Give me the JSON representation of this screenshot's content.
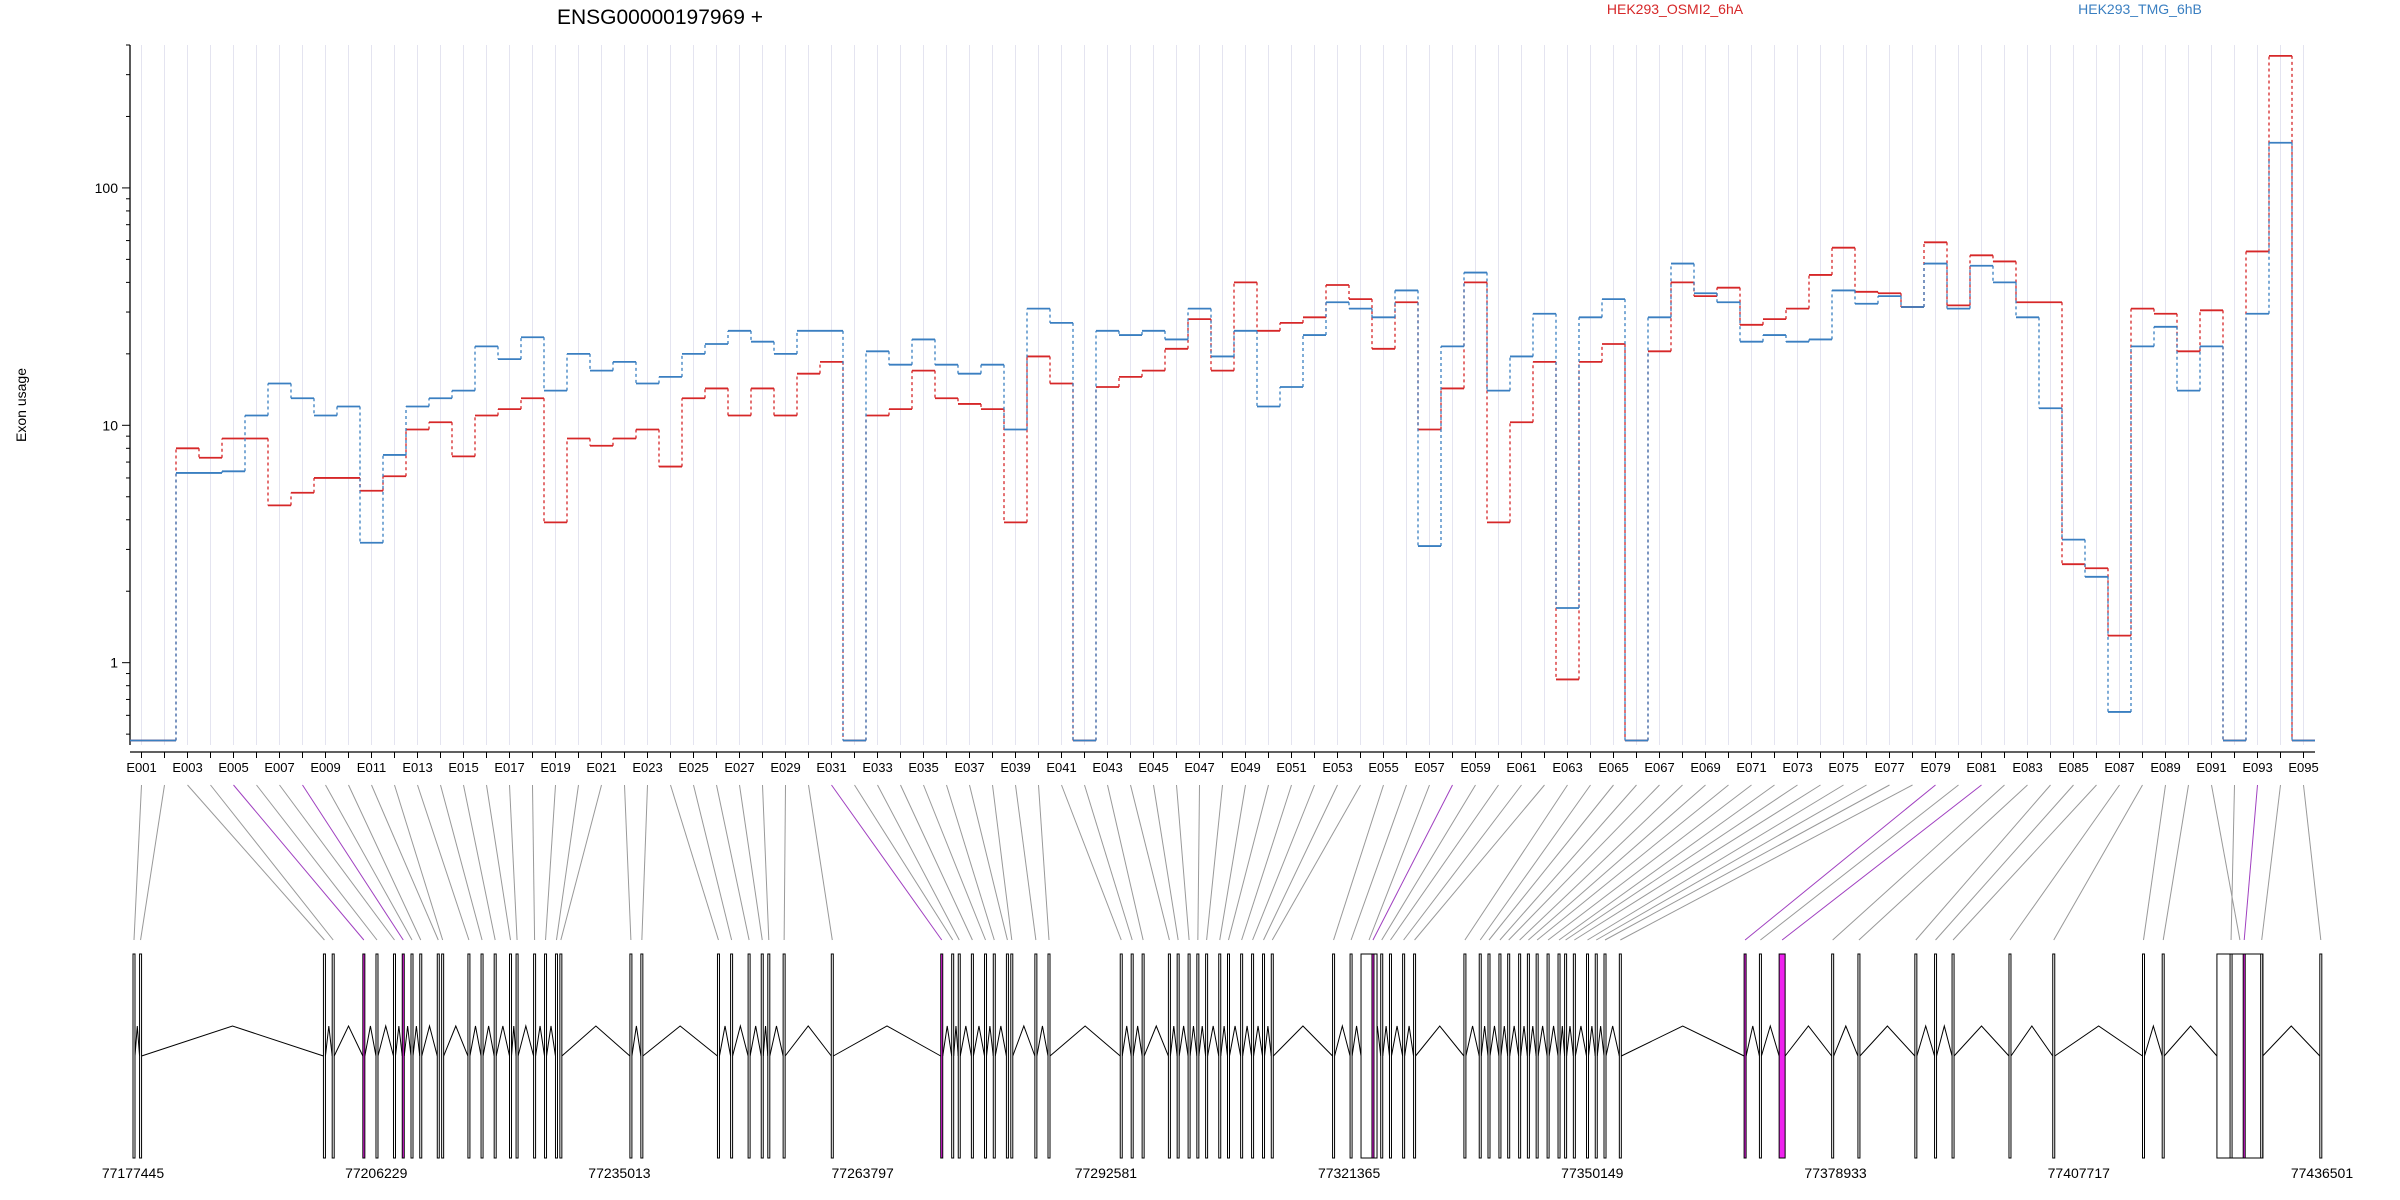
{
  "chart_data": {
    "type": "line",
    "title": "ENSG00000197969 +",
    "ylabel": "Exon usage",
    "yscale": "log",
    "ylim": [
      0.45,
      400
    ],
    "yticks": [
      "1",
      "10",
      "100"
    ],
    "grid": "vertical",
    "legend_position": "top",
    "categories": [
      "E001",
      "E002",
      "E003",
      "E004",
      "E005",
      "E006",
      "E007",
      "E008",
      "E009",
      "E010",
      "E011",
      "E012",
      "E013",
      "E014",
      "E015",
      "E016",
      "E017",
      "E018",
      "E019",
      "E020",
      "E021",
      "E022",
      "E023",
      "E024",
      "E025",
      "E026",
      "E027",
      "E028",
      "E029",
      "E030",
      "E031",
      "E032",
      "E033",
      "E034",
      "E035",
      "E036",
      "E037",
      "E038",
      "E039",
      "E040",
      "E041",
      "E042",
      "E043",
      "E044",
      "E045",
      "E046",
      "E047",
      "E048",
      "E049",
      "E050",
      "E051",
      "E052",
      "E053",
      "E054",
      "E055",
      "E056",
      "E057",
      "E058",
      "E059",
      "E060",
      "E061",
      "E062",
      "E063",
      "E064",
      "E065",
      "E066",
      "E067",
      "E068",
      "E069",
      "E070",
      "E071",
      "E072",
      "E073",
      "E074",
      "E075",
      "E076",
      "E077",
      "E078",
      "E079",
      "E080",
      "E081",
      "E082",
      "E083",
      "E084",
      "E085",
      "E086",
      "E087",
      "E088",
      "E089",
      "E090",
      "E091",
      "E092",
      "E093",
      "E094",
      "E095"
    ],
    "series": [
      {
        "name": "HEK293_OSMI2_6hA",
        "color": "#d62728",
        "values": [
          0.47,
          0.47,
          8,
          7.3,
          8.8,
          8.8,
          4.6,
          5.2,
          6,
          6,
          5.3,
          6.1,
          9.6,
          10.3,
          7.4,
          11,
          11.7,
          13,
          3.9,
          8.8,
          8.2,
          8.8,
          9.6,
          6.7,
          13,
          14.3,
          11,
          14.3,
          11,
          16.5,
          18.5,
          0.47,
          11,
          11.7,
          17,
          13,
          12.3,
          11.7,
          3.9,
          19.5,
          15,
          0.47,
          14.5,
          16,
          17,
          21,
          28,
          17,
          40,
          25,
          27,
          28.5,
          39,
          34,
          21,
          33,
          9.6,
          14.3,
          40,
          3.9,
          10.3,
          18.5,
          0.85,
          18.5,
          22,
          0.47,
          20.5,
          40,
          35,
          38,
          26.5,
          28,
          31,
          43,
          56,
          36.5,
          36,
          31.5,
          59,
          32,
          52,
          49,
          33,
          33,
          2.6,
          2.5,
          1.3,
          31,
          29.5,
          20.5,
          30.5,
          0.47,
          54,
          360,
          0.47
        ]
      },
      {
        "name": "HEK293_TMG_6hB",
        "color": "#3a7fc1",
        "values": [
          0.47,
          0.47,
          6.3,
          6.3,
          6.4,
          11,
          15,
          13,
          11,
          12,
          3.2,
          7.5,
          12,
          13,
          14,
          21.5,
          19,
          23.5,
          14,
          20,
          17,
          18.5,
          15,
          16,
          20,
          22,
          25,
          22.5,
          20,
          25,
          25,
          0.47,
          20.5,
          18,
          23,
          18,
          16.5,
          18,
          9.6,
          31,
          27,
          0.47,
          25,
          24,
          25,
          23,
          31,
          19.5,
          25,
          12,
          14.5,
          24,
          33,
          31,
          28.5,
          37,
          3.1,
          21.5,
          44,
          14,
          19.5,
          29.5,
          1.7,
          28.5,
          34,
          0.47,
          28.5,
          48,
          36,
          33,
          22.5,
          24,
          22.5,
          23,
          37,
          32.5,
          35,
          31.5,
          48,
          31,
          47,
          40,
          28.5,
          11.8,
          3.3,
          2.3,
          0.62,
          21.5,
          26,
          14,
          21.5,
          0.47,
          29.5,
          155,
          0.47
        ]
      }
    ],
    "xlabels_shown": [
      "E001",
      "E003",
      "E005",
      "E007",
      "E009",
      "E011",
      "E013",
      "E015",
      "E017",
      "E019",
      "E021",
      "E023",
      "E025",
      "E027",
      "E029",
      "E031",
      "E033",
      "E035",
      "E037",
      "E039",
      "E041",
      "E043",
      "E045",
      "E047",
      "E049",
      "E051",
      "E053",
      "E055",
      "E057",
      "E059",
      "E061",
      "E063",
      "E065",
      "E067",
      "E069",
      "E071",
      "E073",
      "E075",
      "E077",
      "E079",
      "E081",
      "E083",
      "E085",
      "E087",
      "E089",
      "E091",
      "E093",
      "E095"
    ],
    "genomic_coordinates": [
      "77177445",
      "77206229",
      "77235013",
      "77263797",
      "77292581",
      "77321365",
      "77350149",
      "77378933",
      "77407717",
      "77436501"
    ],
    "gene_model_colors": {
      "exon": "#ffffff",
      "significant_exon": "#ee22ee",
      "link": "#999999",
      "significant_link": "#a040c0"
    }
  }
}
